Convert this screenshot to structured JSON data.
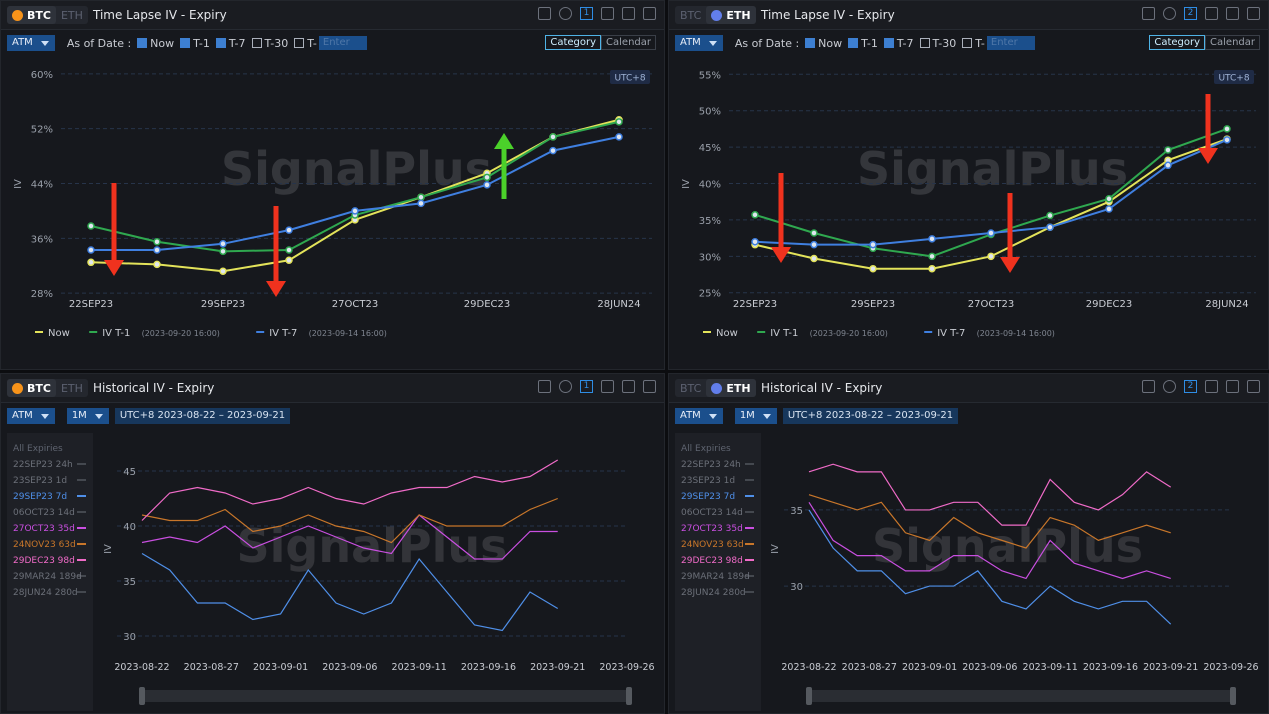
{
  "panels": [
    {
      "tabs": [
        "BTC",
        "ETH"
      ],
      "active": 0,
      "title": "Time Lapse IV - Expiry",
      "badge": "1",
      "toolbar": {
        "select": "ATM",
        "as_of": "As of Date :",
        "checks": [
          {
            "label": "Now",
            "checked": true
          },
          {
            "label": "T-1",
            "checked": true
          },
          {
            "label": "T-7",
            "checked": true
          },
          {
            "label": "T-30",
            "checked": false
          },
          {
            "label": "T-",
            "checked": false
          }
        ],
        "placeholder": "Enter",
        "buttons": [
          "Category",
          "Calendar"
        ],
        "active_button": 0
      }
    },
    {
      "tabs": [
        "BTC",
        "ETH"
      ],
      "active": 1,
      "title": "Time Lapse IV - Expiry",
      "badge": "2",
      "toolbar": {
        "select": "ATM",
        "as_of": "As of Date :",
        "checks": [
          {
            "label": "Now",
            "checked": true
          },
          {
            "label": "T-1",
            "checked": true
          },
          {
            "label": "T-7",
            "checked": true
          },
          {
            "label": "T-30",
            "checked": false
          },
          {
            "label": "T-",
            "checked": false
          }
        ],
        "placeholder": "Enter",
        "buttons": [
          "Category",
          "Calendar"
        ],
        "active_button": 0
      }
    },
    {
      "tabs": [
        "BTC",
        "ETH"
      ],
      "active": 0,
      "title": "Historical IV - Expiry",
      "badge": "1",
      "toolbar": {
        "select": "ATM",
        "period": "1M",
        "range": "UTC+8 2023-08-22 – 2023-09-21"
      }
    },
    {
      "tabs": [
        "BTC",
        "ETH"
      ],
      "active": 1,
      "title": "Historical IV - Expiry",
      "badge": "2",
      "toolbar": {
        "select": "ATM",
        "period": "1M",
        "range": "UTC+8 2023-08-22 – 2023-09-21"
      }
    }
  ],
  "chart_data": [
    {
      "type": "line",
      "ylabel": "IV",
      "watermark": "SignalPlus",
      "timezone": "UTC+8",
      "categories": [
        "22SEP23",
        null,
        "29SEP23",
        null,
        "27OCT23",
        null,
        "29DEC23",
        null,
        "28JUN24"
      ],
      "ylim": [
        27,
        61
      ],
      "yticks": [
        {
          "value": 28,
          "label": "28%"
        },
        {
          "value": 36,
          "label": "36%"
        },
        {
          "value": 44,
          "label": "44%"
        },
        {
          "value": 52,
          "label": "52%"
        },
        {
          "value": 60,
          "label": "60%"
        }
      ],
      "grid": true,
      "series": [
        {
          "name": "Now",
          "color": "#e3e35a",
          "values": [
            32.5,
            32.2,
            31.2,
            32.8,
            38.7,
            42.0,
            45.5,
            50.8,
            53.3
          ]
        },
        {
          "name": "IV T-1",
          "note": "(2023-09-20 16:00)",
          "color": "#2fa84f",
          "values": [
            37.8,
            35.5,
            34.1,
            34.3,
            39.4,
            42.0,
            44.9,
            50.8,
            53.0
          ]
        },
        {
          "name": "IV T-7",
          "note": "(2023-09-14 16:00)",
          "color": "#3f7fe0",
          "values": [
            34.3,
            34.3,
            35.2,
            37.2,
            40.0,
            41.1,
            43.8,
            48.8,
            50.8
          ]
        }
      ]
    },
    {
      "type": "line",
      "ylabel": "IV",
      "watermark": "SignalPlus",
      "timezone": "UTC+8",
      "categories": [
        "22SEP23",
        null,
        "29SEP23",
        null,
        "27OCT23",
        null,
        "29DEC23",
        null,
        "28JUN24"
      ],
      "ylim": [
        24,
        56
      ],
      "yticks": [
        {
          "value": 25,
          "label": "25%"
        },
        {
          "value": 30,
          "label": "30%"
        },
        {
          "value": 35,
          "label": "35%"
        },
        {
          "value": 40,
          "label": "40%"
        },
        {
          "value": 45,
          "label": "45%"
        },
        {
          "value": 50,
          "label": "50%"
        },
        {
          "value": 55,
          "label": "55%"
        }
      ],
      "grid": true,
      "series": [
        {
          "name": "Now",
          "color": "#e3e35a",
          "values": [
            31.6,
            29.7,
            28.3,
            28.3,
            30.0,
            34.0,
            37.5,
            43.2,
            46.1
          ]
        },
        {
          "name": "IV T-1",
          "note": "(2023-09-20 16:00)",
          "color": "#2fa84f",
          "values": [
            35.7,
            33.2,
            31.1,
            30.0,
            33.0,
            35.6,
            37.9,
            44.6,
            47.5
          ]
        },
        {
          "name": "IV T-7",
          "note": "(2023-09-14 16:00)",
          "color": "#3f7fe0",
          "values": [
            32.0,
            31.6,
            31.6,
            32.4,
            33.2,
            34.0,
            36.5,
            42.5,
            46.0
          ]
        }
      ]
    },
    {
      "type": "timeseries",
      "ylabel": "IV",
      "watermark": "SignalPlus",
      "legend_title": "All Expiries",
      "x": [
        "2023-08-22",
        "2023-08-24",
        "2023-08-26",
        "2023-08-28",
        "2023-08-30",
        "2023-09-01",
        "2023-09-03",
        "2023-09-05",
        "2023-09-07",
        "2023-09-09",
        "2023-09-11",
        "2023-09-13",
        "2023-09-15",
        "2023-09-17",
        "2023-09-19",
        "2023-09-21"
      ],
      "xlim": [
        "2023-08-22",
        "2023-09-26"
      ],
      "xticks": [
        "2023-08-22",
        "2023-08-27",
        "2023-09-01",
        "2023-09-06",
        "2023-09-11",
        "2023-09-16",
        "2023-09-21",
        "2023-09-26"
      ],
      "ylim": [
        29,
        47
      ],
      "yticks": [
        30,
        35,
        40,
        45
      ],
      "grid": true,
      "series": [
        {
          "name": "22SEP23 24h",
          "color": "#6b6f78",
          "hidden": true
        },
        {
          "name": "23SEP23 1d",
          "color": "#6b6f78",
          "hidden": true
        },
        {
          "name": "29SEP23 7d",
          "color": "#4f8fe8",
          "values": [
            37.5,
            36,
            33,
            33,
            31.5,
            32,
            36,
            33,
            32,
            33,
            37,
            34,
            31,
            30.5,
            34,
            32.5
          ]
        },
        {
          "name": "06OCT23 14d",
          "color": "#6b6f78",
          "hidden": true
        },
        {
          "name": "27OCT23 35d",
          "color": "#c94fe0",
          "values": [
            38.5,
            39,
            38.5,
            40,
            38,
            39,
            40,
            39,
            38,
            37.5,
            41,
            39,
            37,
            37,
            39.5,
            39.5
          ]
        },
        {
          "name": "24NOV23 63d",
          "color": "#c8762a",
          "values": [
            41,
            40.5,
            40.5,
            41.5,
            39.5,
            40,
            41,
            40,
            39.5,
            38.5,
            41,
            40,
            40,
            40,
            41.5,
            42.5
          ]
        },
        {
          "name": "29DEC23 98d",
          "color": "#f06bc8",
          "values": [
            40.5,
            43,
            43.5,
            43,
            42,
            42.5,
            43.5,
            42.5,
            42,
            43,
            43.5,
            43.5,
            44.5,
            44,
            44.5,
            46
          ]
        },
        {
          "name": "29MAR24 189d",
          "color": "#6b6f78",
          "hidden": true
        },
        {
          "name": "28JUN24 280d",
          "color": "#6b6f78",
          "hidden": true
        }
      ]
    },
    {
      "type": "timeseries",
      "ylabel": "IV",
      "watermark": "SignalPlus",
      "legend_title": "All Expiries",
      "x": [
        "2023-08-22",
        "2023-08-24",
        "2023-08-26",
        "2023-08-28",
        "2023-08-30",
        "2023-09-01",
        "2023-09-03",
        "2023-09-05",
        "2023-09-07",
        "2023-09-09",
        "2023-09-11",
        "2023-09-13",
        "2023-09-15",
        "2023-09-17",
        "2023-09-19",
        "2023-09-21"
      ],
      "xlim": [
        "2023-08-22",
        "2023-09-26"
      ],
      "xticks": [
        "2023-08-22",
        "2023-08-27",
        "2023-09-01",
        "2023-09-06",
        "2023-09-11",
        "2023-09-16",
        "2023-09-21",
        "2023-09-26"
      ],
      "ylim": [
        26,
        39
      ],
      "yticks": [
        30,
        35
      ],
      "grid": true,
      "series": [
        {
          "name": "22SEP23 24h",
          "color": "#6b6f78",
          "hidden": true
        },
        {
          "name": "23SEP23 1d",
          "color": "#6b6f78",
          "hidden": true
        },
        {
          "name": "29SEP23 7d",
          "color": "#4f8fe8",
          "values": [
            35,
            32.5,
            31,
            31,
            29.5,
            30,
            30,
            31,
            29,
            28.5,
            30,
            29,
            28.5,
            29,
            29,
            27.5
          ]
        },
        {
          "name": "06OCT23 14d",
          "color": "#6b6f78",
          "hidden": true
        },
        {
          "name": "27OCT23 35d",
          "color": "#c94fe0",
          "values": [
            35.5,
            33,
            32,
            32,
            31,
            31,
            32,
            32,
            31,
            30.5,
            33,
            31.5,
            31,
            30.5,
            31,
            30.5
          ]
        },
        {
          "name": "24NOV23 63d",
          "color": "#c8762a",
          "values": [
            36,
            35.5,
            35,
            35.5,
            33.5,
            33,
            34.5,
            33.5,
            33,
            32.5,
            34.5,
            34,
            33,
            33.5,
            34,
            33.5
          ]
        },
        {
          "name": "29DEC23 98d",
          "color": "#f06bc8",
          "values": [
            37.5,
            38,
            37.5,
            37.5,
            35,
            35,
            35.5,
            35.5,
            34,
            34,
            37,
            35.5,
            35,
            36,
            37.5,
            36.5
          ]
        },
        {
          "name": "29MAR24 189d",
          "color": "#6b6f78",
          "hidden": true
        },
        {
          "name": "28JUN24 280d",
          "color": "#6b6f78",
          "hidden": true
        }
      ]
    }
  ]
}
